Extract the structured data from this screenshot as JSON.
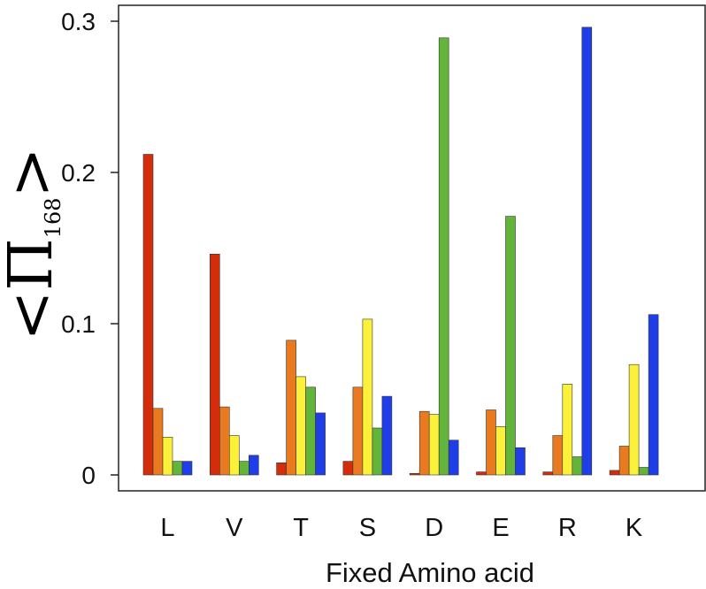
{
  "chart_data": {
    "type": "bar",
    "xlabel": "Fixed Amino acid",
    "ylabel": {
      "open": "<",
      "symbol": "Π",
      "subscript": "168",
      "close": ">"
    },
    "ylim": [
      0,
      0.3
    ],
    "yticks": [
      {
        "value": 0,
        "label": "0"
      },
      {
        "value": 0.1,
        "label": "0.1"
      },
      {
        "value": 0.2,
        "label": "0.2"
      },
      {
        "value": 0.3,
        "label": "0.3"
      }
    ],
    "categories": [
      "L",
      "V",
      "T",
      "S",
      "D",
      "E",
      "R",
      "K"
    ],
    "grid": false,
    "legend": "none",
    "series": [
      {
        "color": "#d42d0c",
        "values": [
          0.212,
          0.146,
          0.008,
          0.009,
          0.001,
          0.002,
          0.002,
          0.003
        ]
      },
      {
        "color": "#ea7a1f",
        "values": [
          0.044,
          0.045,
          0.089,
          0.058,
          0.042,
          0.043,
          0.026,
          0.019
        ]
      },
      {
        "color": "#fbf03a",
        "values": [
          0.025,
          0.026,
          0.065,
          0.103,
          0.04,
          0.032,
          0.06,
          0.073
        ]
      },
      {
        "color": "#63b43a",
        "values": [
          0.009,
          0.009,
          0.058,
          0.031,
          0.289,
          0.171,
          0.012,
          0.005
        ]
      },
      {
        "color": "#1f3ee8",
        "values": [
          0.009,
          0.013,
          0.041,
          0.052,
          0.023,
          0.018,
          0.296,
          0.106
        ]
      }
    ]
  }
}
